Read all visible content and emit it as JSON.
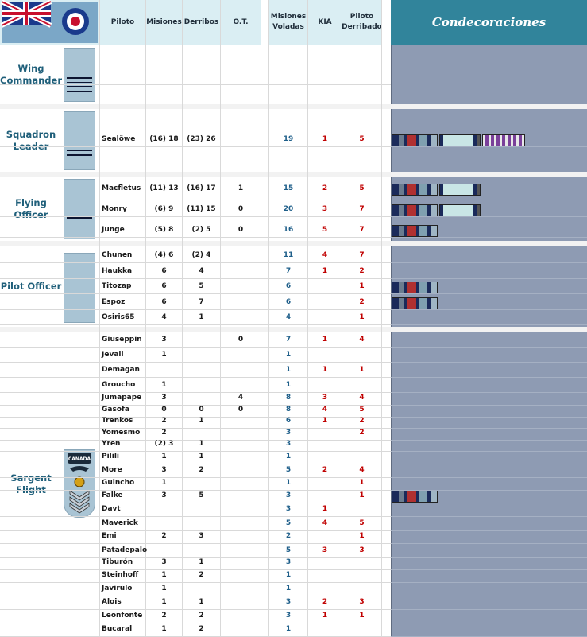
{
  "header": {
    "piloto": "Piloto",
    "misiones": "Misiones",
    "derribos": "Derribos",
    "ot": "O.T.",
    "misiones_voladas": "Misiones Voladas",
    "kia": "KIA",
    "piloto_derribado": "Piloto Derribado",
    "condecoraciones": "Condecoraciones"
  },
  "ranks": {
    "wing_commander": "Wing Commander",
    "squadron_leader": "Squadron Leader",
    "flying_officer": "Flying Officer",
    "pilot_officer": "Pilot Officer",
    "sargent_flight": "Sargent Flight"
  },
  "insignia_text": "CANADA",
  "colors": {
    "header_bg": "#daeef3",
    "condecoraciones_bg": "#31849b",
    "decorations_panel": "#8e9bb3",
    "rank_text": "#1f5f7a",
    "kia_red": "#c00000",
    "missions_blue": "#1f5f8a"
  },
  "pilots": [
    {
      "name": "Sealöwe",
      "misiones": "(16) 18",
      "derribos": "(23) 26",
      "ot": "",
      "voladas": "19",
      "kia": "1",
      "derribado": "5",
      "ribbons": [
        "dfc",
        "afc",
        "dfm"
      ]
    },
    {
      "name": "Macfletus",
      "misiones": "(11) 13",
      "derribos": "(16) 17",
      "ot": "1",
      "voladas": "15",
      "kia": "2",
      "derribado": "5",
      "ribbons": [
        "dfc",
        "afc"
      ]
    },
    {
      "name": "Monry",
      "misiones": "(6) 9",
      "derribos": "(11) 15",
      "ot": "0",
      "voladas": "20",
      "kia": "3",
      "derribado": "7",
      "ribbons": [
        "dfc",
        "afc"
      ]
    },
    {
      "name": "Junge",
      "misiones": "(5) 8",
      "derribos": "(2) 5",
      "ot": "0",
      "voladas": "16",
      "kia": "5",
      "derribado": "7",
      "ribbons": [
        "dfc"
      ]
    },
    {
      "name": "Chunen",
      "misiones": "(4) 6",
      "derribos": "(2) 4",
      "ot": "",
      "voladas": "11",
      "kia": "4",
      "derribado": "7",
      "ribbons": []
    },
    {
      "name": "Haukka",
      "misiones": "6",
      "derribos": "4",
      "ot": "",
      "voladas": "7",
      "kia": "1",
      "derribado": "2",
      "ribbons": []
    },
    {
      "name": "Titozap",
      "misiones": "6",
      "derribos": "5",
      "ot": "",
      "voladas": "6",
      "kia": "",
      "derribado": "1",
      "ribbons": [
        "dfc"
      ]
    },
    {
      "name": "Espoz",
      "misiones": "6",
      "derribos": "7",
      "ot": "",
      "voladas": "6",
      "kia": "",
      "derribado": "2",
      "ribbons": [
        "dfc"
      ]
    },
    {
      "name": "Osiris65",
      "misiones": "4",
      "derribos": "1",
      "ot": "",
      "voladas": "4",
      "kia": "",
      "derribado": "1",
      "ribbons": []
    },
    {
      "name": "Giuseppin",
      "misiones": "3",
      "derribos": "",
      "ot": "0",
      "voladas": "7",
      "kia": "1",
      "derribado": "4",
      "ribbons": []
    },
    {
      "name": "Jevali",
      "misiones": "1",
      "derribos": "",
      "ot": "",
      "voladas": "1",
      "kia": "",
      "derribado": "",
      "ribbons": []
    },
    {
      "name": "Demagan",
      "misiones": "",
      "derribos": "",
      "ot": "",
      "voladas": "1",
      "kia": "1",
      "derribado": "1",
      "ribbons": []
    },
    {
      "name": "Groucho",
      "misiones": "1",
      "derribos": "",
      "ot": "",
      "voladas": "1",
      "kia": "",
      "derribado": "",
      "ribbons": []
    },
    {
      "name": "Jumapape",
      "misiones": "3",
      "derribos": "",
      "ot": "4",
      "voladas": "8",
      "kia": "3",
      "derribado": "4",
      "ribbons": []
    },
    {
      "name": "Gasofa",
      "misiones": "0",
      "derribos": "0",
      "ot": "0",
      "voladas": "8",
      "kia": "4",
      "derribado": "5",
      "ribbons": []
    },
    {
      "name": "Trenkos",
      "misiones": "2",
      "derribos": "1",
      "ot": "",
      "voladas": "6",
      "kia": "1",
      "derribado": "2",
      "ribbons": []
    },
    {
      "name": "Yomesmo",
      "misiones": "2",
      "derribos": "",
      "ot": "",
      "voladas": "3",
      "kia": "",
      "derribado": "2",
      "ribbons": []
    },
    {
      "name": "Yren",
      "misiones": "(2) 3",
      "derribos": "1",
      "ot": "",
      "voladas": "3",
      "kia": "",
      "derribado": "",
      "ribbons": []
    },
    {
      "name": "Pilili",
      "misiones": "1",
      "derribos": "1",
      "ot": "",
      "voladas": "1",
      "kia": "",
      "derribado": "",
      "ribbons": []
    },
    {
      "name": "More",
      "misiones": "3",
      "derribos": "2",
      "ot": "",
      "voladas": "5",
      "kia": "2",
      "derribado": "4",
      "ribbons": []
    },
    {
      "name": "Guincho",
      "misiones": "1",
      "derribos": "",
      "ot": "",
      "voladas": "1",
      "kia": "",
      "derribado": "1",
      "ribbons": []
    },
    {
      "name": "Falke",
      "misiones": "3",
      "derribos": "5",
      "ot": "",
      "voladas": "3",
      "kia": "",
      "derribado": "1",
      "ribbons": [
        "dfc"
      ]
    },
    {
      "name": "Davt",
      "misiones": "",
      "derribos": "",
      "ot": "",
      "voladas": "3",
      "kia": "1",
      "derribado": "",
      "ribbons": []
    },
    {
      "name": "Maverick",
      "misiones": "",
      "derribos": "",
      "ot": "",
      "voladas": "5",
      "kia": "4",
      "derribado": "5",
      "ribbons": []
    },
    {
      "name": "Emi",
      "misiones": "2",
      "derribos": "3",
      "ot": "",
      "voladas": "2",
      "kia": "",
      "derribado": "1",
      "ribbons": []
    },
    {
      "name": "Patadepalo",
      "misiones": "",
      "derribos": "",
      "ot": "",
      "voladas": "5",
      "kia": "3",
      "derribado": "3",
      "ribbons": []
    },
    {
      "name": "Tiburón",
      "misiones": "3",
      "derribos": "1",
      "ot": "",
      "voladas": "3",
      "kia": "",
      "derribado": "",
      "ribbons": []
    },
    {
      "name": "Steinhoff",
      "misiones": "1",
      "derribos": "2",
      "ot": "",
      "voladas": "1",
      "kia": "",
      "derribado": "",
      "ribbons": []
    },
    {
      "name": "Javirulo",
      "misiones": "1",
      "derribos": "",
      "ot": "",
      "voladas": "1",
      "kia": "",
      "derribado": "",
      "ribbons": []
    },
    {
      "name": "Alois",
      "misiones": "1",
      "derribos": "1",
      "ot": "",
      "voladas": "3",
      "kia": "2",
      "derribado": "3",
      "ribbons": []
    },
    {
      "name": "Leonfonte",
      "misiones": "2",
      "derribos": "2",
      "ot": "",
      "voladas": "3",
      "kia": "1",
      "derribado": "1",
      "ribbons": []
    },
    {
      "name": "Bucaral",
      "misiones": "1",
      "derribos": "2",
      "ot": "",
      "voladas": "1",
      "kia": "",
      "derribado": "",
      "ribbons": []
    }
  ]
}
